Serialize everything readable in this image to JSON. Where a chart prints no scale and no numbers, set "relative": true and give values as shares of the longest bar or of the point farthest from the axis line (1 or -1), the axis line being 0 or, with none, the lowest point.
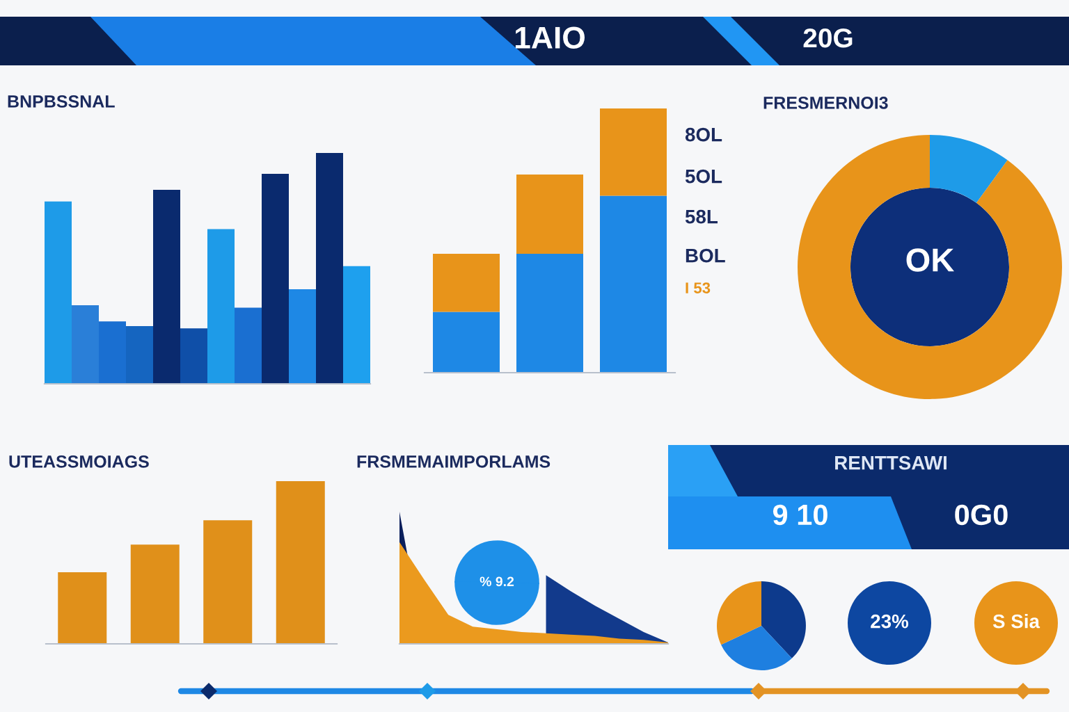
{
  "chart_data": [
    {
      "type": "other",
      "annotations": [
        "1AIO",
        "20G"
      ]
    },
    {
      "type": "bar",
      "title": "BNPBSSNAL",
      "relative": true,
      "categories": [
        null,
        null,
        null,
        null,
        null,
        null,
        null,
        null,
        null,
        null,
        null,
        null
      ],
      "values": [
        0.79,
        0.34,
        0.27,
        0.25,
        0.84,
        0.24,
        0.67,
        0.33,
        0.91,
        0.41,
        1.0,
        0.51
      ],
      "colors": [
        "#1e9be8",
        "#2a7fd8",
        "#1a6fd1",
        "#1565c0",
        "#0a2a6e",
        "#0f4fa8",
        "#1e9be8",
        "#1a6fd1",
        "#0a2a6e",
        "#1e88e5",
        "#0a2a6e",
        "#1ea0ee"
      ]
    },
    {
      "type": "bar",
      "stacked": true,
      "relative": true,
      "categories": [
        null,
        null,
        null
      ],
      "series": [
        {
          "color": "#1e88e5",
          "values": [
            0.23,
            0.45,
            0.67
          ]
        },
        {
          "color": "#e8941a",
          "values": [
            0.22,
            0.3,
            0.33
          ]
        }
      ],
      "annotations": [
        "8OL",
        "5OL",
        "58L",
        "BOL",
        "I 53"
      ]
    },
    {
      "type": "donut",
      "title": "FRESMERNOI3",
      "categories": [
        null,
        null
      ],
      "values": [
        10,
        90
      ],
      "colors": [
        "#1e9be8",
        "#e8941a"
      ],
      "annotations": [
        "OK"
      ]
    },
    {
      "type": "bar",
      "title": "UTEASSMOIAGS",
      "relative": true,
      "categories": [
        null,
        null,
        null,
        null
      ],
      "values": [
        0.44,
        0.61,
        0.76,
        1.0
      ],
      "color": "#e0901a"
    },
    {
      "type": "area",
      "title": "FRSMEMAIMPORLAMS",
      "relative": true,
      "categories": [
        null,
        null,
        null,
        null,
        null,
        null,
        null,
        null,
        null,
        null,
        null,
        null
      ],
      "series": [
        {
          "color": "#0b1f5c",
          "values": [
            1.0,
            0,
            0,
            0,
            0,
            0,
            0,
            0,
            0,
            0,
            0,
            0
          ]
        },
        {
          "color": "#123a8c",
          "values": [
            null,
            null,
            null,
            null,
            null,
            null,
            0.52,
            0.4,
            0.29,
            0.19,
            0.09,
            0.01
          ]
        },
        {
          "color": "#eb9a1e",
          "values": [
            0.77,
            0.49,
            0.22,
            0.13,
            0.11,
            0.09,
            0.08,
            0.07,
            0.06,
            0.04,
            0.03,
            0.01
          ]
        }
      ],
      "annotations": [
        "% 9.2"
      ]
    },
    {
      "type": "other",
      "title": "RENTTSAWI",
      "annotations": [
        "9 10",
        "0G0"
      ]
    },
    {
      "type": "pie",
      "categories": [
        null,
        null,
        null
      ],
      "values": [
        38,
        30,
        32
      ],
      "colors": [
        "#0d3a8c",
        "#1e7fe0",
        "#e8941a"
      ]
    },
    {
      "type": "pie",
      "categories": [
        null
      ],
      "values": [
        100
      ],
      "colors": [
        "#0d47a1"
      ],
      "annotations": [
        "23%"
      ]
    },
    {
      "type": "pie",
      "categories": [
        null
      ],
      "values": [
        100
      ],
      "colors": [
        "#e8941a"
      ],
      "annotations": [
        "S Sia"
      ]
    }
  ]
}
